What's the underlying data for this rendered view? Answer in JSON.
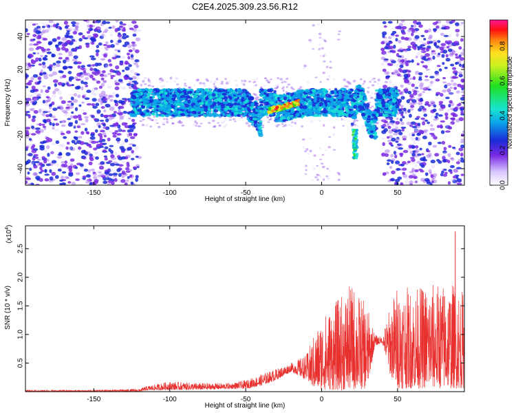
{
  "title": "C2E4.2025.309.23.56.R12",
  "colors": {
    "signal": "#e8302e",
    "spec_low": "#e6d6ff",
    "spec_mid": "#7a2be3",
    "spec_core": "#1a2ad8"
  },
  "chart_data": [
    {
      "type": "heatmap",
      "name": "spectrogram",
      "xlabel": "Height of straight line (km)",
      "ylabel": "Frequency (Hz)",
      "xlim": [
        -195,
        94
      ],
      "ylim": [
        -50,
        50
      ],
      "xticks": [
        -150,
        -100,
        -50,
        0,
        50
      ],
      "xtick_labels": [
        "-150",
        "-100",
        "-50",
        "0",
        "50"
      ],
      "yticks": [
        -40,
        -20,
        0,
        20,
        40
      ],
      "ytick_labels": [
        "-40",
        "-20",
        "0",
        "20",
        "40"
      ],
      "colorbar": {
        "label": "Normalized spectral amplitude",
        "range": [
          0,
          0.95
        ],
        "ticks": [
          0.0,
          0.2,
          0.4,
          0.6,
          0.8
        ],
        "tick_labels": [
          "0.0",
          "0.2",
          "0.4",
          "0.6",
          "0.8"
        ]
      },
      "features": [
        {
          "name": "broadband noise",
          "x_range": [
            -195,
            -120
          ],
          "freq_range": [
            -50,
            50
          ],
          "level": 0.15
        },
        {
          "name": "main band",
          "x_range": [
            -125,
            50
          ],
          "freq_range": [
            -8,
            8
          ],
          "level": 0.3
        },
        {
          "name": "peak arc",
          "x_range": [
            -35,
            -15
          ],
          "freq_center": -2,
          "level": 0.9
        },
        {
          "name": "dip",
          "x": 22,
          "freq_center": -25,
          "level": 0.45
        },
        {
          "name": "broadband noise",
          "x_range": [
            40,
            94
          ],
          "freq_range": [
            -50,
            50
          ],
          "level": 0.15
        }
      ]
    },
    {
      "type": "line",
      "name": "snr",
      "xlabel": "Height of straight line (km)",
      "ylabel": "SNR (10 * v/v)",
      "scale_label": "(x10^4)",
      "scale_base": "(x10",
      "scale_exp": "4",
      "scale_close": ")",
      "xlim": [
        -195,
        94
      ],
      "ylim": [
        0,
        2.9
      ],
      "xticks": [
        -150,
        -100,
        -50,
        0,
        50
      ],
      "xtick_labels": [
        "-150",
        "-100",
        "-50",
        "0",
        "50"
      ],
      "yticks": [
        0.5,
        1.0,
        1.5,
        2.0,
        2.5
      ],
      "ytick_labels": [
        "0.5",
        "1.0",
        "1.5",
        "2.0",
        "2.5"
      ],
      "envelope": {
        "x": [
          -195,
          -150,
          -120,
          -115,
          -100,
          -80,
          -60,
          -50,
          -40,
          -30,
          -20,
          -10,
          -5,
          0,
          10,
          20,
          30,
          35,
          40,
          45,
          50,
          60,
          70,
          80,
          88,
          94
        ],
        "low": [
          0.0,
          0.0,
          0.0,
          0.02,
          0.03,
          0.03,
          0.05,
          0.05,
          0.1,
          0.2,
          0.35,
          0.2,
          0.05,
          0.03,
          0.02,
          0.02,
          0.05,
          0.8,
          0.85,
          0.3,
          0.05,
          0.05,
          0.05,
          0.05,
          0.05,
          0.05
        ],
        "high": [
          0.03,
          0.03,
          0.05,
          0.1,
          0.18,
          0.15,
          0.15,
          0.2,
          0.3,
          0.4,
          0.5,
          0.65,
          1.0,
          1.3,
          1.6,
          1.9,
          1.5,
          1.0,
          0.95,
          1.5,
          1.9,
          1.8,
          1.9,
          1.9,
          1.9,
          1.75
        ]
      },
      "peak": {
        "x": 88,
        "y": 2.8
      }
    }
  ]
}
